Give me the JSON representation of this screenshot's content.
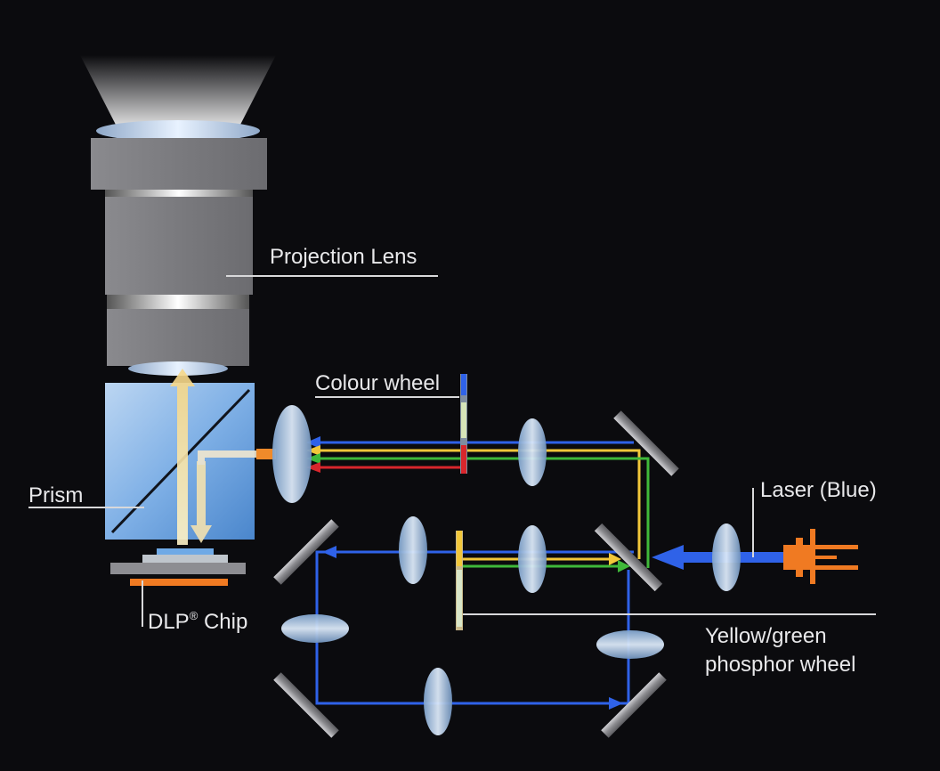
{
  "labels": {
    "projection_lens": "Projection Lens",
    "colour_wheel": "Colour wheel",
    "prism": "Prism",
    "laser": "Laser (Blue)",
    "dlp_chip_prefix": "DLP",
    "dlp_chip_sup": "®",
    "dlp_chip_suffix": " Chip",
    "phosphor_line1": "Yellow/green",
    "phosphor_line2": "phosphor wheel"
  },
  "colors": {
    "background": "#0b0b0e",
    "blue_beam": "#2f62e8",
    "yellow_beam": "#f2c73a",
    "green_beam": "#3fb83a",
    "red_beam": "#d8262c",
    "orange_beam": "#f08a2a",
    "laser_diode": "#f07a22",
    "chip_orange": "#f07a22",
    "lens_gray": "#7a7a7e",
    "label_text": "#e8e8ea"
  }
}
